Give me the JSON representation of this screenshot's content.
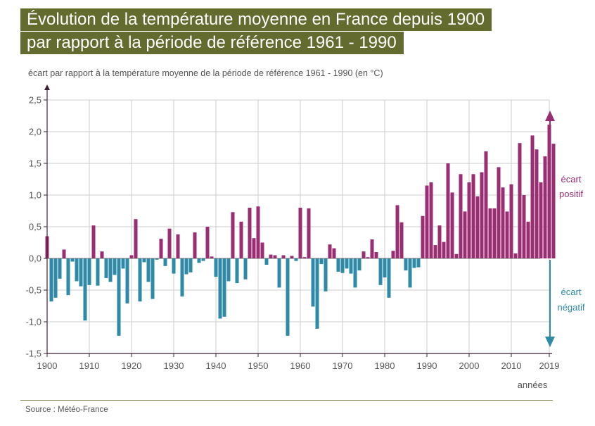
{
  "title": {
    "line1": "Évolution de la température moyenne en France depuis 1900",
    "line2": "par rapport à la période de référence 1961 - 1990"
  },
  "source": "Source : Météo-France",
  "colors": {
    "title_band": "#636b2f",
    "positive": "#9a2e73",
    "negative": "#2e8aa6",
    "grid": "#cccccc",
    "axis": "#3d1f35"
  },
  "chart_data": {
    "type": "bar",
    "title": "Évolution de la température moyenne en France depuis 1900 par rapport à la période de référence 1961 - 1990",
    "ylabel": "écart par rapport à la température moyenne de la période de référence 1961 - 1990 (en °C)",
    "xlabel": "années",
    "ylim": [
      -1.5,
      2.5
    ],
    "xlim": [
      1900,
      2019
    ],
    "grid": true,
    "x_ticks": [
      "1900",
      "1910",
      "1920",
      "1930",
      "1940",
      "1950",
      "1960",
      "1970",
      "1980",
      "1990",
      "2000",
      "2010",
      "2019"
    ],
    "y_ticks": [
      "2,5",
      "2,0",
      "1,5",
      "1,0",
      "0,5",
      "0,0",
      "-0,5",
      "-1,0",
      "-1,5"
    ],
    "annotations": {
      "positive_line1": "écart",
      "positive_line2": "positif",
      "negative_line1": "écart",
      "negative_line2": "négatif"
    },
    "start_year": 1900,
    "values": [
      0.35,
      -0.68,
      -0.62,
      -0.32,
      0.14,
      -0.58,
      -0.05,
      -0.36,
      -0.44,
      -0.98,
      -0.42,
      0.52,
      -0.43,
      0.11,
      -0.31,
      -0.37,
      -0.26,
      -1.22,
      -0.16,
      -0.71,
      0.05,
      0.62,
      -0.68,
      -0.06,
      -0.37,
      -0.64,
      -0.02,
      0.31,
      -0.12,
      0.47,
      -0.24,
      0.38,
      -0.6,
      -0.25,
      -0.22,
      0.41,
      -0.07,
      -0.04,
      0.5,
      0.03,
      -0.29,
      -0.95,
      -0.92,
      -0.36,
      0.73,
      -0.39,
      0.58,
      -0.33,
      0.8,
      0.32,
      0.82,
      0.25,
      -0.1,
      0.06,
      0.05,
      -0.46,
      0.05,
      -1.22,
      0.04,
      -0.04,
      0.8,
      0.02,
      0.79,
      -0.76,
      -1.11,
      -0.09,
      -0.52,
      0.22,
      0.16,
      -0.21,
      -0.23,
      -0.16,
      -0.24,
      -0.46,
      -0.19,
      0.11,
      0.02,
      0.3,
      0.1,
      -0.42,
      -0.3,
      -0.62,
      0.12,
      0.84,
      0.57,
      -0.19,
      -0.46,
      -0.15,
      -0.14,
      0.67,
      1.15,
      1.2,
      0.21,
      0.52,
      0.26,
      1.5,
      1.04,
      0.07,
      1.33,
      0.74,
      1.2,
      1.33,
      0.98,
      1.36,
      1.69,
      0.79,
      0.79,
      1.44,
      1.12,
      0.74,
      1.17,
      0.08,
      1.82,
      1.0,
      0.58,
      1.94,
      1.72,
      1.2,
      1.61,
      2.11,
      1.81
    ]
  }
}
